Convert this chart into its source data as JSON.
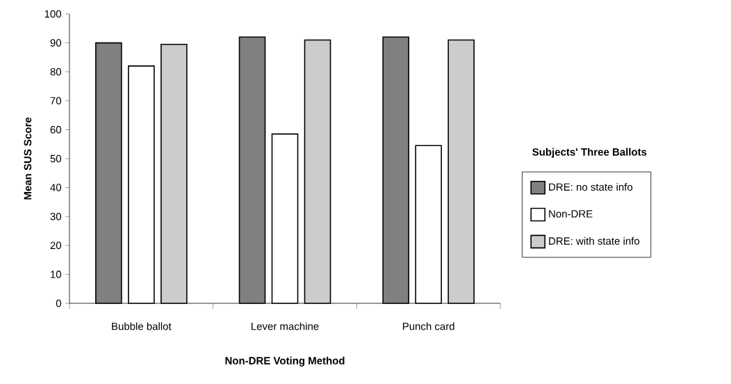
{
  "chart_data": {
    "type": "bar",
    "xlabel": "Non-DRE Voting Method",
    "ylabel": "Mean SUS Score",
    "legend_title": "Subjects' Three Ballots",
    "categories": [
      "Bubble ballot",
      "Lever machine",
      "Punch card"
    ],
    "series": [
      {
        "name": "DRE: no state info",
        "color": "#808080",
        "values": [
          90,
          92,
          92
        ]
      },
      {
        "name": "Non-DRE",
        "color": "#ffffff",
        "values": [
          82,
          58.5,
          54.5
        ]
      },
      {
        "name": "DRE: with state info",
        "color": "#cccccc",
        "values": [
          89.5,
          91,
          91
        ]
      }
    ],
    "ylim": [
      0,
      100
    ],
    "yticks": [
      0,
      10,
      20,
      30,
      40,
      50,
      60,
      70,
      80,
      90,
      100
    ],
    "legend": "right"
  }
}
